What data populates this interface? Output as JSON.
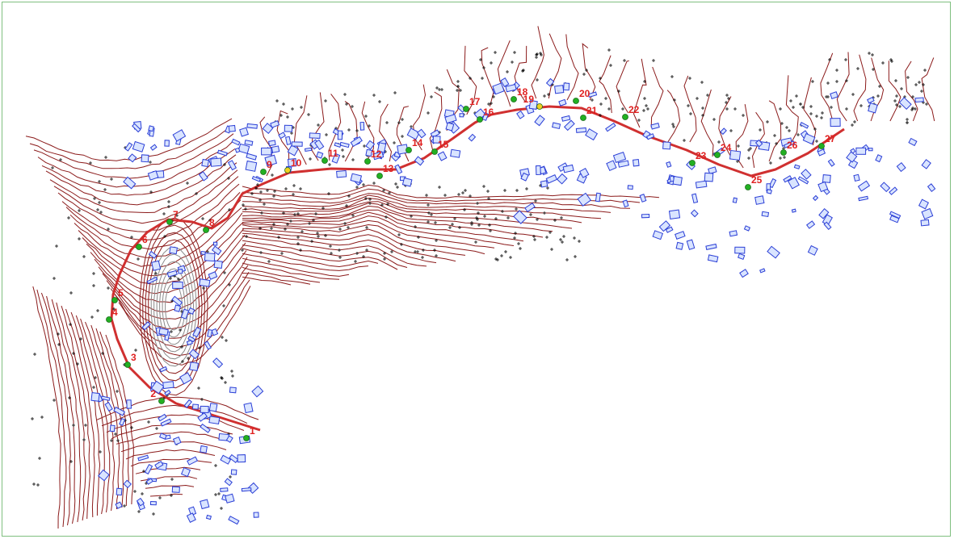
{
  "map": {
    "colors": {
      "contour": "#8b1a1a",
      "road": "#d03030",
      "building": "#2b3fd6",
      "building_fill": "#d9e4ff",
      "label": "#e02020",
      "point_green": "#22b022",
      "point_yellow": "#f0d020",
      "marker": "#000000",
      "border": "#7fbf7f"
    },
    "labels": [
      "1",
      "2",
      "3",
      "4",
      "5",
      "6",
      "7",
      "8",
      "9",
      "10",
      "11",
      "12",
      "13",
      "14",
      "15",
      "16",
      "17",
      "18",
      "19",
      "20",
      "21",
      "22",
      "23",
      "24",
      "25",
      "26",
      "27"
    ],
    "point_kinds": [
      "green",
      "green",
      "green",
      "green",
      "green",
      "green",
      "green",
      "green",
      "green",
      "yellow",
      "green",
      "green",
      "green",
      "green",
      "green",
      "green",
      "green",
      "green",
      "yellow",
      "green",
      "green",
      "green",
      "green",
      "green",
      "green",
      "green",
      "green"
    ]
  }
}
